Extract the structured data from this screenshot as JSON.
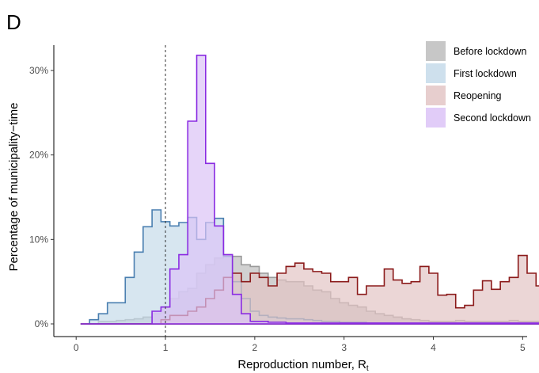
{
  "chart_data": {
    "type": "area",
    "panel": "D",
    "xlabel": "Reproduction number, R",
    "xlabel_subscript": "t",
    "ylabel": "Percentage of municipality−time",
    "xlim": [
      -0.25,
      5.05
    ],
    "ylim": [
      -0.015,
      0.33
    ],
    "x_ticks": [
      0,
      1,
      2,
      3,
      4,
      5
    ],
    "y_ticks": [
      0,
      0.1,
      0.2,
      0.3
    ],
    "y_tick_labels": [
      "0%",
      "10%",
      "20%",
      "30%"
    ],
    "reference_line_x": 1,
    "bin_width": 0.1,
    "legend_position": "top-right",
    "series": [
      {
        "name": "Before lockdown",
        "fill": "#bdbdbd",
        "stroke": "#9a9a9a",
        "x_start": 0.05,
        "values": [
          0,
          0,
          0.003,
          0.003,
          0.004,
          0.005,
          0.006,
          0.008,
          0.012,
          0.02,
          0.03,
          0.038,
          0.042,
          0.06,
          0.07,
          0.078,
          0.082,
          0.08,
          0.07,
          0.068,
          0.06,
          0.055,
          0.052,
          0.05,
          0.05,
          0.045,
          0.04,
          0.038,
          0.03,
          0.025,
          0.022,
          0.02,
          0.015,
          0.012,
          0.01,
          0.008,
          0.006,
          0.005,
          0.004,
          0.003,
          0.003,
          0.003,
          0.004,
          0.003,
          0.003,
          0.003,
          0.003,
          0.003,
          0.004,
          0.003,
          0.003,
          0.003,
          0.002,
          0.002,
          0.002,
          0.003,
          0.004,
          0.003,
          0.003,
          0.004,
          0.004,
          0.002,
          0.008,
          0.008
        ]
      },
      {
        "name": "First lockdown",
        "fill": "#c6dbea",
        "stroke": "#4a7fb0",
        "x_start": 0.05,
        "values": [
          0,
          0.005,
          0.012,
          0.025,
          0.025,
          0.055,
          0.085,
          0.115,
          0.135,
          0.121,
          0.116,
          0.12,
          0.126,
          0.1,
          0.12,
          0.125,
          0.08,
          0.05,
          0.03,
          0.015,
          0.01,
          0.008,
          0.007,
          0.006,
          0.006,
          0.005,
          0.004,
          0.003,
          0.003,
          0.002,
          0.002,
          0.002,
          0.001,
          0.001,
          0.001,
          0,
          0,
          0,
          0,
          0,
          0,
          0,
          0,
          0,
          0,
          0,
          0,
          0,
          0,
          0,
          0,
          0,
          0,
          0,
          0,
          0,
          0,
          0,
          0,
          0,
          0,
          0,
          0,
          0
        ]
      },
      {
        "name": "Reopening",
        "fill": "#e3c5c5",
        "stroke": "#8b1a1a",
        "x_start": 0.05,
        "values": [
          0,
          0,
          0,
          0,
          0,
          0,
          0,
          0,
          0,
          0.005,
          0.01,
          0.01,
          0.015,
          0.02,
          0.03,
          0.04,
          0.055,
          0.06,
          0.05,
          0.06,
          0.055,
          0.045,
          0.06,
          0.068,
          0.072,
          0.065,
          0.062,
          0.06,
          0.05,
          0.05,
          0.055,
          0.035,
          0.045,
          0.045,
          0.065,
          0.052,
          0.048,
          0.05,
          0.068,
          0.06,
          0.034,
          0.035,
          0.019,
          0.022,
          0.04,
          0.051,
          0.041,
          0.05,
          0.055,
          0.081,
          0.06,
          0.045,
          0.04,
          0.045,
          0.055,
          0.062,
          0.04,
          0.018,
          0.025,
          0.012,
          0.012,
          0.008,
          0.005,
          0.005
        ]
      },
      {
        "name": "Second lockdown",
        "fill": "#dcc3f7",
        "stroke": "#8a2be2",
        "x_start": 0.05,
        "values": [
          0,
          0,
          0,
          0,
          0,
          0,
          0,
          0,
          0.015,
          0.02,
          0.065,
          0.082,
          0.24,
          0.318,
          0.19,
          0.116,
          0.082,
          0.035,
          0.012,
          0.003,
          0.003,
          0.002,
          0.002,
          0.001,
          0.001,
          0.001,
          0.001,
          0.001,
          0.001,
          0.001,
          0.001,
          0.001,
          0.001,
          0.001,
          0.001,
          0.001,
          0.001,
          0.001,
          0.001,
          0.001,
          0.001,
          0.001,
          0.001,
          0.001,
          0.001,
          0.001,
          0.001,
          0.001,
          0.001,
          0.001,
          0.001,
          0.001,
          0.001,
          0.001,
          0.001,
          0.001,
          0.001,
          0.001,
          0.001,
          0.001,
          0.001,
          0.001,
          0.001,
          0.001
        ]
      }
    ]
  }
}
